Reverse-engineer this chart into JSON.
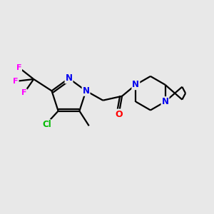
{
  "background_color": "#e8e8e8",
  "atom_colors": {
    "C": "#000000",
    "N": "#0000ee",
    "O": "#ff0000",
    "F": "#ff00ff",
    "Cl": "#00bb00"
  },
  "bond_color": "#000000",
  "bond_width": 1.6,
  "figsize": [
    3.0,
    3.0
  ],
  "dpi": 100
}
